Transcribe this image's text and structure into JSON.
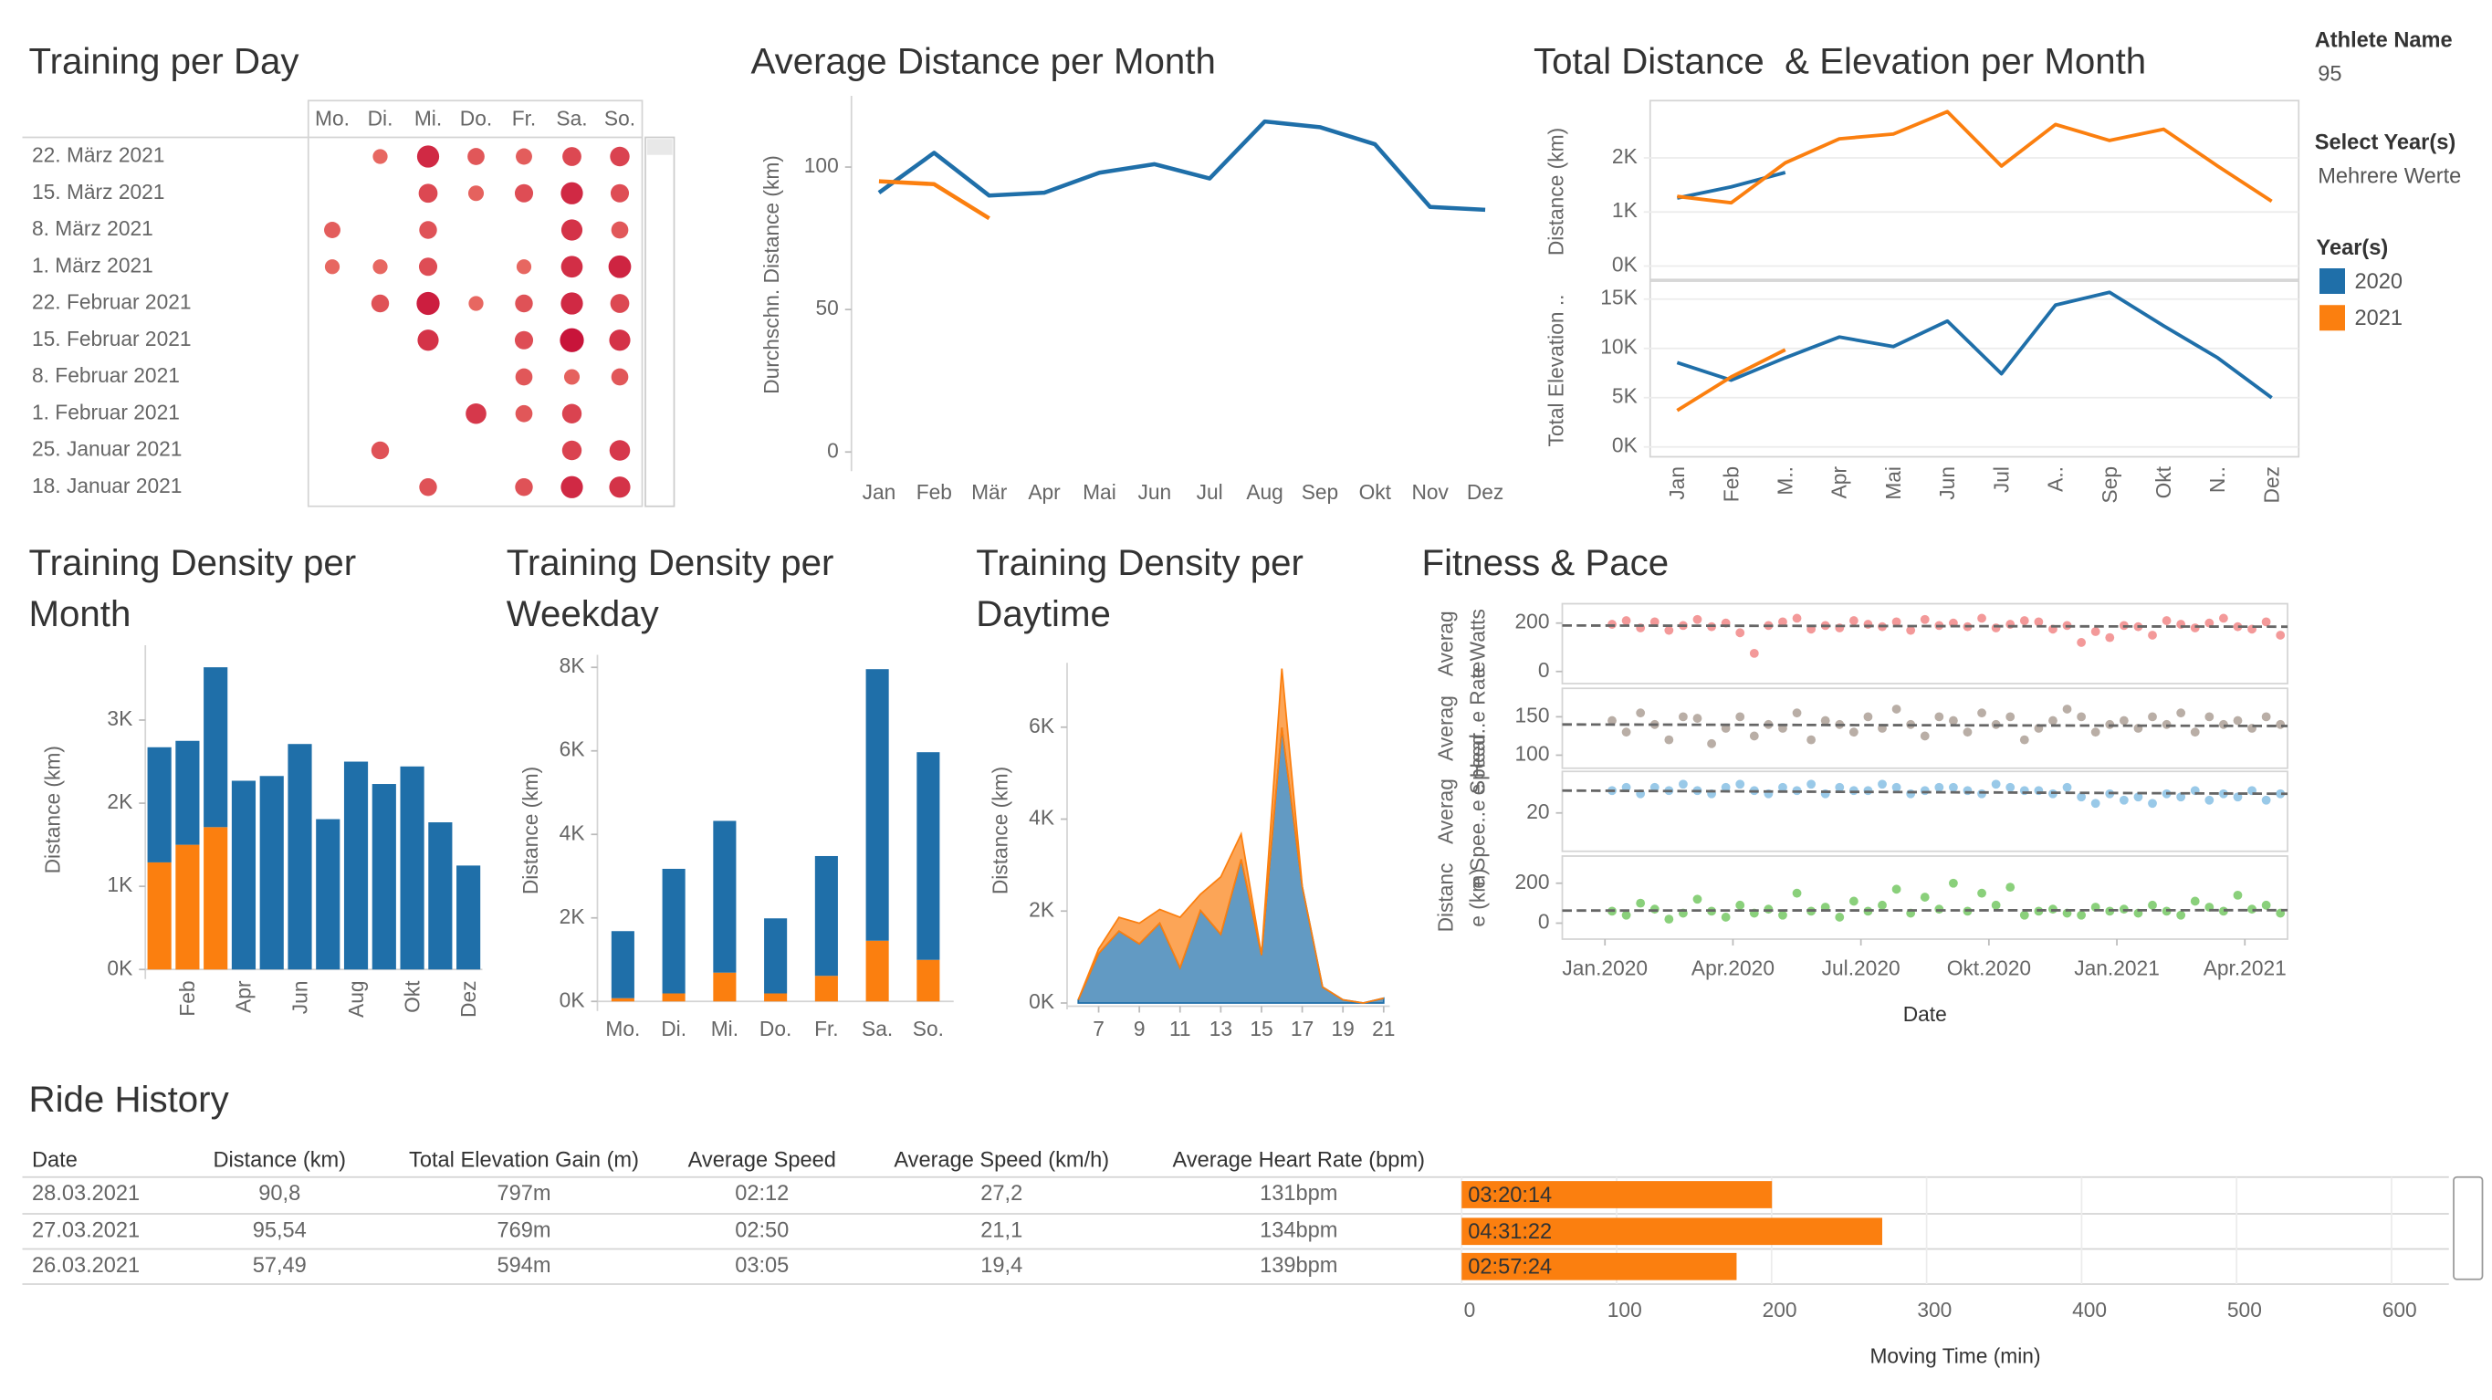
{
  "chart_data": [
    {
      "type": "bubble-grid",
      "title": "Training per Day",
      "columns": [
        "Mo.",
        "Di.",
        "Mi.",
        "Do.",
        "Fr.",
        "Sa.",
        "So."
      ],
      "rows": [
        "22. März 2021",
        "15. März 2021",
        "8. März 2021",
        "1. März 2021",
        "22. Februar 2021",
        "15. Februar 2021",
        "8. Februar 2021",
        "1. Februar 2021",
        "25. Januar 2021",
        "18. Januar 2021"
      ],
      "values": [
        [
          null,
          30,
          90,
          45,
          40,
          60,
          65
        ],
        [
          null,
          null,
          60,
          35,
          55,
          90,
          55
        ],
        [
          40,
          null,
          50,
          null,
          null,
          80,
          45
        ],
        [
          30,
          30,
          55,
          null,
          30,
          85,
          95
        ],
        [
          null,
          50,
          100,
          30,
          50,
          90,
          60
        ],
        [
          null,
          null,
          80,
          null,
          55,
          110,
          80
        ],
        [
          null,
          null,
          null,
          null,
          45,
          35,
          45
        ],
        [
          null,
          null,
          null,
          75,
          45,
          65,
          null
        ],
        [
          null,
          50,
          null,
          null,
          null,
          65,
          75
        ],
        [
          null,
          null,
          50,
          null,
          50,
          90,
          80
        ]
      ],
      "colors": [
        "#f3866f",
        "#c8143a"
      ]
    },
    {
      "type": "line",
      "title": "Average Distance per Month",
      "ylabel": "Durchschn. Distance (km)",
      "categories": [
        "Jan",
        "Feb",
        "Mär",
        "Apr",
        "Mai",
        "Jun",
        "Jul",
        "Aug",
        "Sep",
        "Okt",
        "Nov",
        "Dez"
      ],
      "series": [
        {
          "name": "2020",
          "color": "#1f6fa9",
          "values": [
            91,
            105,
            90,
            91,
            98,
            101,
            96,
            116,
            114,
            108,
            86,
            85
          ]
        },
        {
          "name": "2021",
          "color": "#fb7f0f",
          "values": [
            95,
            94,
            82,
            null,
            null,
            null,
            null,
            null,
            null,
            null,
            null,
            null
          ]
        }
      ],
      "ylim": [
        0,
        125
      ],
      "yticks": [
        0,
        50,
        100
      ]
    },
    {
      "type": "line-panels",
      "title": "Total Distance  & Elevation per Month",
      "categories": [
        "Jan",
        "Feb",
        "M..",
        "Apr",
        "Mai",
        "Jun",
        "Jul",
        "A..",
        "Sep",
        "Okt",
        "N..",
        "Dez"
      ],
      "panels": [
        {
          "ylabel": "Distance (km)",
          "ylim": [
            -250,
            3000
          ],
          "yticks": [
            {
              "value": 0,
              "label": "0K"
            },
            {
              "value": 1000,
              "label": "1K"
            },
            {
              "value": 2000,
              "label": "2K"
            }
          ],
          "series": [
            {
              "name": "2020",
              "color": "#1f6fa9",
              "values": [
                1257,
                1464,
                1730,
                null,
                null,
                null,
                null,
                null,
                null,
                null,
                null,
                null
              ]
            },
            {
              "name": "2021",
              "color": "#fb7f0f",
              "values": [
                1287,
                1169,
                1908,
                2352,
                2441,
                2855,
                1849,
                2618,
                2322,
                2530,
                1849,
                1198
              ]
            }
          ]
        },
        {
          "ylabel": "Total Elevation ..",
          "ylim": [
            -1000,
            16500
          ],
          "yticks": [
            {
              "value": 0,
              "label": "0K"
            },
            {
              "value": 5000,
              "label": "5K"
            },
            {
              "value": 10000,
              "label": "10K"
            },
            {
              "value": 15000,
              "label": "15K"
            }
          ],
          "series": [
            {
              "name": "2020",
              "color": "#1f6fa9",
              "values": [
                8557,
                6775,
                9044,
                11150,
                10178,
                12771,
                7423,
                14392,
                15689,
                12285,
                9044,
                4992
              ]
            },
            {
              "name": "2021",
              "color": "#fb7f0f",
              "values": [
                3695,
                7099,
                9854,
                null,
                null,
                null,
                null,
                null,
                null,
                null,
                null,
                null
              ]
            }
          ]
        }
      ]
    },
    {
      "type": "stacked-bar",
      "title": "Training Density per Month",
      "ylabel": "Distance (km)",
      "categories": [
        null,
        "Feb",
        null,
        "Apr",
        null,
        "Jun",
        null,
        "Aug",
        null,
        "Okt",
        null,
        "Dez"
      ],
      "series": [
        {
          "name": "2021",
          "color": "#fb7f0f",
          "values": [
            1288,
            1500,
            1712,
            null,
            null,
            null,
            null,
            null,
            null,
            null,
            null,
            null
          ]
        },
        {
          "name": "2020",
          "color": "#1f6fa9",
          "values": [
            1385,
            1250,
            1923,
            2270,
            2327,
            2712,
            1808,
            2500,
            2231,
            2442,
            1770,
            1250
          ]
        }
      ],
      "ylim": [
        0,
        3900
      ],
      "yticks": [
        {
          "value": 0,
          "label": "0K"
        },
        {
          "value": 1000,
          "label": "1K"
        },
        {
          "value": 2000,
          "label": "2K"
        },
        {
          "value": 3000,
          "label": "3K"
        }
      ]
    },
    {
      "type": "stacked-bar",
      "title": "Training Density per Weekday",
      "ylabel": "Distance (km)",
      "categories": [
        "Mo.",
        "Di.",
        "Mi.",
        "Do.",
        "Fr.",
        "Sa.",
        "So."
      ],
      "series": [
        {
          "name": "2021",
          "color": "#fb7f0f",
          "values": [
            77,
            191,
            689,
            191,
            612,
            1454,
            995
          ]
        },
        {
          "name": "2020",
          "color": "#1f6fa9",
          "values": [
            1606,
            2984,
            3634,
            1798,
            2869,
            6503,
            4973
          ]
        }
      ],
      "ylim": [
        0,
        8300
      ],
      "yticks": [
        {
          "value": 0,
          "label": "0K"
        },
        {
          "value": 2000,
          "label": "2K"
        },
        {
          "value": 4000,
          "label": "4K"
        },
        {
          "value": 6000,
          "label": "6K"
        },
        {
          "value": 8000,
          "label": "8K"
        }
      ]
    },
    {
      "type": "stacked-area",
      "title": "Training Density per Daytime",
      "ylabel": "Distance (km)",
      "x": [
        6,
        7,
        8,
        9,
        10,
        11,
        12,
        13,
        14,
        15,
        16,
        17,
        18,
        19,
        20,
        21
      ],
      "series": [
        {
          "name": "2020",
          "color": "#1f6fa9",
          "values": [
            70,
            1076,
            1563,
            1285,
            1736,
            764,
            2014,
            1493,
            3125,
            1042,
            5990,
            2535,
            347,
            69,
            0,
            104
          ]
        },
        {
          "name": "2021",
          "color": "#fb7f0f",
          "values": [
            0,
            100,
            300,
            450,
            300,
            1100,
            350,
            1250,
            550,
            0,
            1285,
            0,
            0,
            0,
            0,
            0
          ]
        }
      ],
      "xlim": [
        6,
        21.3
      ],
      "xticks": [
        7,
        9,
        11,
        13,
        15,
        17,
        19,
        21
      ],
      "ylim": [
        0,
        7400
      ],
      "yticks": [
        {
          "value": 0,
          "label": "0K"
        },
        {
          "value": 2000,
          "label": "2K"
        },
        {
          "value": 4000,
          "label": "4K"
        },
        {
          "value": 6000,
          "label": "6K"
        }
      ]
    },
    {
      "type": "scatter-panels",
      "title": "Fitness & Pace",
      "xlabel": "Date",
      "x": [
        "2020-01",
        "2020-01",
        "2020-01",
        "2020-02",
        "2020-02",
        "2020-02",
        "2020-03",
        "2020-03",
        "2020-03",
        "2020-04",
        "2020-04",
        "2020-04",
        "2020-05",
        "2020-05",
        "2020-05",
        "2020-06",
        "2020-06",
        "2020-06",
        "2020-07",
        "2020-07",
        "2020-07",
        "2020-08",
        "2020-08",
        "2020-08",
        "2020-09",
        "2020-09",
        "2020-09",
        "2020-10",
        "2020-10",
        "2020-10",
        "2020-11",
        "2020-11",
        "2020-11",
        "2020-12",
        "2020-12",
        "2020-12",
        "2021-01",
        "2021-01",
        "2021-01",
        "2021-02",
        "2021-02",
        "2021-02",
        "2021-03",
        "2021-03",
        "2021-03",
        "2021-04",
        "2021-04",
        "2021-04"
      ],
      "xlim": [
        "2019-12",
        "2021-05"
      ],
      "xticks": [
        {
          "value": "2020-01",
          "label": "Jan.2020"
        },
        {
          "value": "2020-04",
          "label": "Apr.2020"
        },
        {
          "value": "2020-07",
          "label": "Jul.2020"
        },
        {
          "value": "2020-10",
          "label": "Okt.2020"
        },
        {
          "value": "2021-01",
          "label": "Jan.2021"
        },
        {
          "value": "2021-04",
          "label": "Apr.2021"
        }
      ],
      "panels": [
        {
          "ylabel": [
            "Averag",
            "e Watts"
          ],
          "ylim": [
            -50,
            280
          ],
          "yticks": [
            0,
            200
          ],
          "color": "#f28e8e",
          "trend": [
            190,
            185
          ],
          "values": [
            195,
            210,
            180,
            205,
            170,
            190,
            215,
            185,
            200,
            160,
            75,
            190,
            205,
            220,
            175,
            190,
            180,
            210,
            195,
            185,
            205,
            170,
            215,
            190,
            200,
            185,
            220,
            180,
            195,
            210,
            205,
            175,
            190,
            120,
            165,
            140,
            190,
            185,
            150,
            210,
            195,
            180,
            200,
            220,
            185,
            175,
            205,
            150
          ]
        },
        {
          "ylabel": [
            "Averag",
            "e Hear..e Rate"
          ],
          "ylim": [
            83,
            187
          ],
          "yticks": [
            100,
            150
          ],
          "color": "#b1a59c",
          "trend": [
            140,
            138
          ],
          "values": [
            145,
            130,
            155,
            140,
            120,
            150,
            148,
            115,
            135,
            150,
            125,
            140,
            135,
            155,
            120,
            145,
            140,
            130,
            150,
            135,
            160,
            140,
            125,
            150,
            145,
            130,
            155,
            140,
            150,
            120,
            135,
            145,
            160,
            150,
            130,
            140,
            145,
            135,
            150,
            140,
            155,
            130,
            150,
            140,
            145,
            135,
            150,
            140
          ]
        },
        {
          "ylabel": [
            "Averag",
            "e Spee..e Speed"
          ],
          "ylim": [
            8,
            33
          ],
          "yticks": [
            20
          ],
          "color": "#8ec3e6",
          "trend": [
            27,
            26
          ],
          "values": [
            27,
            28,
            26,
            28,
            27,
            29,
            27,
            26,
            28,
            29,
            27,
            26,
            28,
            27,
            29,
            26,
            28,
            27,
            27,
            29,
            28,
            26,
            27,
            28,
            28,
            27,
            26,
            29,
            28,
            27,
            27,
            26,
            28,
            25,
            23,
            26,
            24,
            25,
            23,
            26,
            25,
            27,
            24,
            26,
            25,
            27,
            24,
            26
          ]
        },
        {
          "ylabel": [
            "Distanc",
            "e (km)"
          ],
          "ylim": [
            -80,
            336
          ],
          "yticks": [
            0,
            200
          ],
          "color": "#7dcb6d",
          "trend": [
            63,
            65
          ],
          "values": [
            60,
            40,
            100,
            70,
            20,
            50,
            120,
            60,
            30,
            90,
            50,
            70,
            40,
            150,
            60,
            80,
            30,
            110,
            60,
            90,
            170,
            50,
            130,
            70,
            200,
            60,
            150,
            90,
            180,
            40,
            60,
            70,
            50,
            40,
            80,
            60,
            70,
            50,
            90,
            60,
            40,
            110,
            80,
            60,
            140,
            70,
            90,
            50
          ]
        }
      ]
    },
    {
      "type": "hbar",
      "xlabel": "Moving Time (min)",
      "color": "#fb7f0f",
      "values": [
        200.23,
        271.37,
        177.4
      ],
      "value_labels": [
        "03:20:14",
        "04:31:22",
        "02:57:24"
      ],
      "xlim": [
        0,
        637
      ],
      "xticks": [
        0,
        100,
        200,
        300,
        400,
        500,
        600
      ],
      "grid": true
    }
  ],
  "sidebar": {
    "athlete_label": "Athlete Name",
    "athlete": "95",
    "year_label": "Select Year(s)",
    "year_value": "Mehrere Werte",
    "legend_title": "Year(s)"
  },
  "ride_history": {
    "title": "Ride History",
    "columns": [
      "Date",
      "Distance (km)",
      "Total Elevation Gain (m)",
      "Average Speed",
      "Average Speed (km/h)",
      "Average Heart Rate (bpm)"
    ],
    "rows": [
      [
        "28.03.2021",
        "90,8",
        "797m",
        "02:12",
        "27,2",
        "131bpm"
      ],
      [
        "27.03.2021",
        "95,54",
        "769m",
        "02:50",
        "21,1",
        "134bpm"
      ],
      [
        "26.03.2021",
        "57,49",
        "594m",
        "03:05",
        "19,4",
        "139bpm"
      ]
    ]
  }
}
